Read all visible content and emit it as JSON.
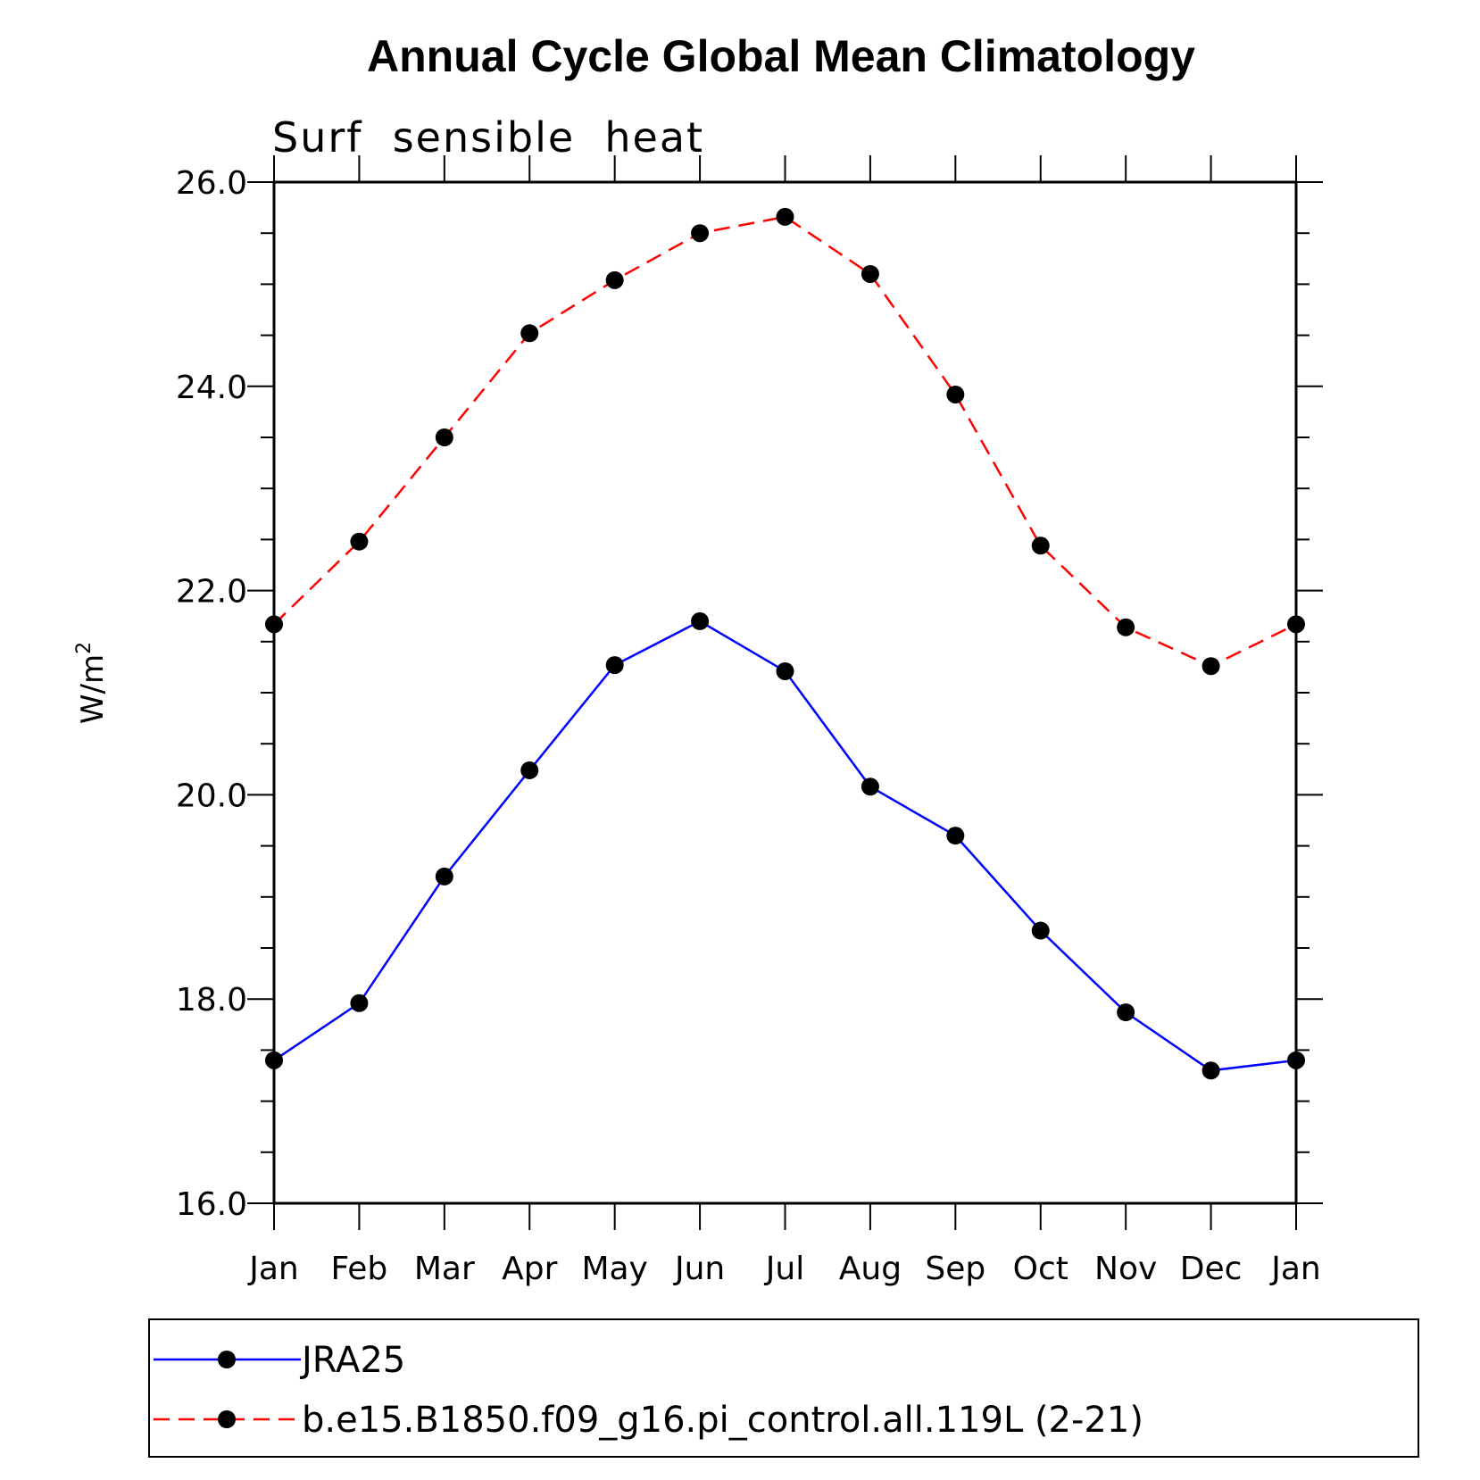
{
  "chart_data": {
    "type": "line",
    "title": "Annual Cycle Global Mean Climatology",
    "subtitle": "Surf  sensible  heat",
    "ylabel": "W/m",
    "ylabel_superscript": "2",
    "categories": [
      "Jan",
      "Feb",
      "Mar",
      "Apr",
      "May",
      "Jun",
      "Jul",
      "Aug",
      "Sep",
      "Oct",
      "Nov",
      "Dec",
      "Jan"
    ],
    "ylim": [
      16.0,
      26.0
    ],
    "yticks": [
      "16.0",
      "18.0",
      "20.0",
      "22.0",
      "24.0",
      "26.0"
    ],
    "legend_placement": "bottom",
    "grid": false,
    "series": [
      {
        "name": "JRA25",
        "color": "#0000ff",
        "line_style": "solid",
        "marker": "filled-circle",
        "values": [
          17.4,
          17.96,
          19.2,
          20.24,
          21.27,
          21.7,
          21.21,
          20.08,
          19.6,
          18.67,
          17.87,
          17.3,
          17.4
        ]
      },
      {
        "name": "b.e15.B1850.f09_g16.pi_control.all.119L (2-21)",
        "color": "#ff0000",
        "line_style": "dashed",
        "marker": "filled-circle",
        "values": [
          21.67,
          22.48,
          23.5,
          24.52,
          25.04,
          25.5,
          25.66,
          25.1,
          23.92,
          22.44,
          21.64,
          21.26,
          21.67
        ]
      }
    ]
  }
}
